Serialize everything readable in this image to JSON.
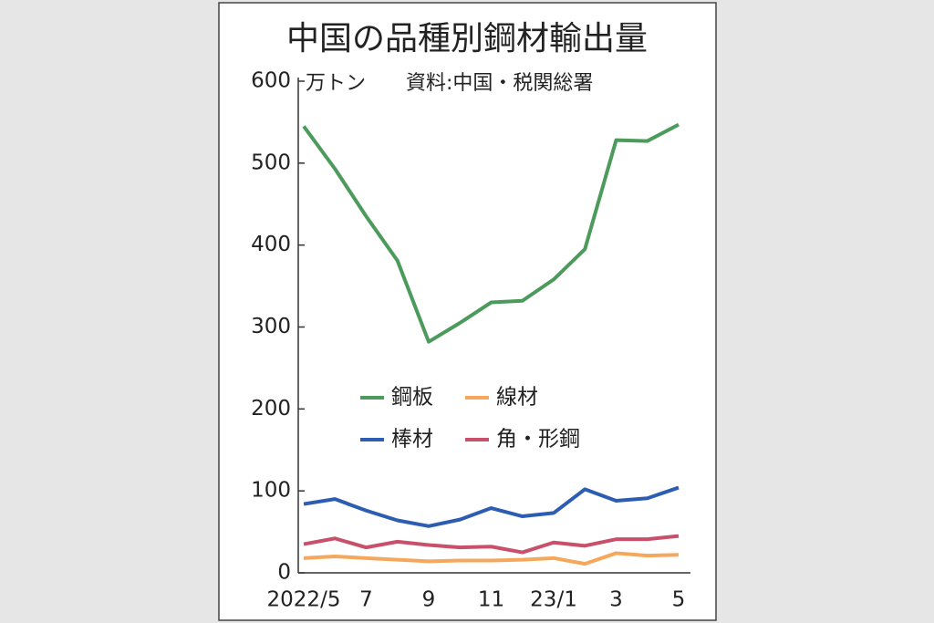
{
  "chart_data": {
    "type": "line",
    "title": "中国の品種別鋼材輸出量",
    "unit": "万トン",
    "source": "資料:中国・税関総署",
    "categories": [
      "2022/5",
      null,
      "7",
      null,
      "9",
      null,
      "11",
      null,
      "23/1",
      null,
      "3",
      null,
      "5"
    ],
    "series": [
      {
        "name": "鋼板",
        "color": "#4c9a5c",
        "values": [
          545,
          493,
          435,
          381,
          282,
          305,
          330,
          332,
          358,
          395,
          528,
          527,
          547
        ]
      },
      {
        "name": "線材",
        "color": "#f5a85c",
        "values": [
          18,
          20,
          18,
          16,
          14,
          15,
          15,
          16,
          18,
          11,
          24,
          21,
          22
        ]
      },
      {
        "name": "棒材",
        "color": "#2d5db3",
        "values": [
          84,
          90,
          76,
          64,
          57,
          65,
          79,
          69,
          73,
          102,
          88,
          91,
          104
        ]
      },
      {
        "name": "角・形鋼",
        "color": "#c9506a",
        "values": [
          35,
          42,
          31,
          38,
          34,
          31,
          32,
          25,
          37,
          33,
          41,
          41,
          45
        ]
      }
    ],
    "ylim": [
      0,
      600
    ],
    "yticks": [
      0,
      100,
      200,
      300,
      400,
      500,
      600
    ]
  }
}
